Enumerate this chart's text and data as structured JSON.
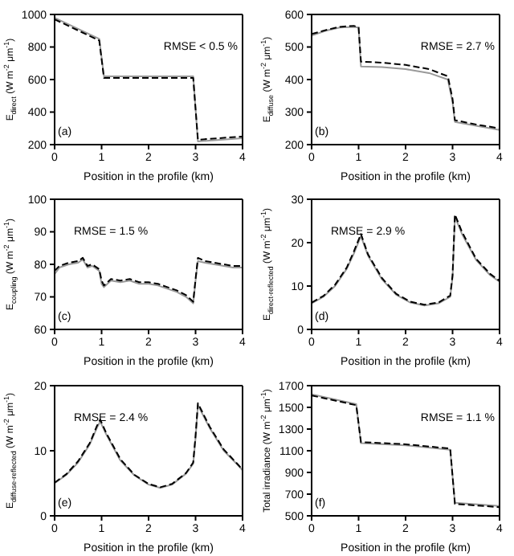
{
  "chart_data": [
    {
      "type": "line",
      "xlabel": "Position in the profile (km)",
      "ylabel": "E$_{direct}$ (W m$^{-2}$ μm$^{-1}$)",
      "annotations": [
        "RMSE < 0.5 %",
        "(a)"
      ],
      "xlim": [
        0,
        4
      ],
      "xticks": [
        0,
        1,
        2,
        3,
        4
      ],
      "ylim": [
        200,
        1000
      ],
      "yticks": [
        200,
        400,
        600,
        800,
        1000
      ],
      "series": [
        {
          "color": "#999999",
          "line_style": "solid",
          "x": [
            0,
            0.95,
            1.05,
            2.95,
            3.05,
            4
          ],
          "values": [
            980,
            850,
            620,
            620,
            220,
            240
          ]
        },
        {
          "color": "#000000",
          "line_style": "dashed",
          "x": [
            0,
            0.95,
            1.05,
            2.95,
            3.05,
            4
          ],
          "values": [
            970,
            840,
            610,
            610,
            230,
            250
          ]
        }
      ]
    },
    {
      "type": "line",
      "xlabel": "Position in the profile (km)",
      "ylabel": "E$_{diffuse}$ (W m$^{-2}$ μm$^{-1}$)",
      "annotations": [
        "RMSE = 2.7 %",
        "(b)"
      ],
      "xlim": [
        0,
        4
      ],
      "xticks": [
        0,
        1,
        2,
        3,
        4
      ],
      "ylim": [
        200,
        600
      ],
      "yticks": [
        200,
        300,
        400,
        500,
        600
      ],
      "series": [
        {
          "color": "#999999",
          "line_style": "solid",
          "x": [
            0,
            0.3,
            0.6,
            0.9,
            1.0,
            1.05,
            1.5,
            2,
            2.5,
            2.9,
            3.0,
            3.05,
            3.5,
            4
          ],
          "values": [
            535,
            550,
            560,
            562,
            560,
            440,
            438,
            432,
            420,
            400,
            330,
            270,
            258,
            245
          ]
        },
        {
          "color": "#000000",
          "line_style": "dashed",
          "x": [
            0,
            0.3,
            0.6,
            0.9,
            1.0,
            1.05,
            1.5,
            2,
            2.5,
            2.9,
            3.0,
            3.05,
            3.5,
            4
          ],
          "values": [
            540,
            552,
            562,
            565,
            560,
            455,
            452,
            445,
            432,
            410,
            340,
            275,
            262,
            250
          ]
        }
      ]
    },
    {
      "type": "line",
      "xlabel": "Position in the profile (km)",
      "ylabel": "E$_{coupling}$ (W m$^{-2}$ μm$^{-1}$)",
      "annotations": [
        "RMSE = 1.5 %",
        "(c)"
      ],
      "xlim": [
        0,
        4
      ],
      "xticks": [
        0,
        1,
        2,
        3,
        4
      ],
      "ylim": [
        60,
        100
      ],
      "yticks": [
        60,
        70,
        80,
        90,
        100
      ],
      "series": [
        {
          "color": "#999999",
          "line_style": "solid",
          "x": [
            0,
            0.1,
            0.3,
            0.5,
            0.6,
            0.7,
            0.8,
            0.95,
            1.0,
            1.05,
            1.2,
            1.4,
            1.6,
            1.8,
            2.0,
            2.2,
            2.4,
            2.6,
            2.8,
            2.95,
            3.0,
            3.05,
            3.2,
            3.4,
            3.6,
            3.8,
            4
          ],
          "values": [
            77,
            79,
            80,
            80.5,
            81.5,
            79,
            79.5,
            78,
            74,
            73,
            75,
            74.5,
            75,
            74,
            74,
            73.5,
            72.5,
            71.5,
            70,
            68,
            75,
            81,
            80.5,
            80,
            79.5,
            79,
            79
          ]
        },
        {
          "color": "#000000",
          "line_style": "dashed",
          "x": [
            0,
            0.1,
            0.3,
            0.5,
            0.6,
            0.7,
            0.8,
            0.95,
            1.0,
            1.05,
            1.2,
            1.4,
            1.6,
            1.8,
            2.0,
            2.2,
            2.4,
            2.6,
            2.8,
            2.95,
            3.0,
            3.05,
            3.2,
            3.4,
            3.6,
            3.8,
            4
          ],
          "values": [
            78,
            79.5,
            80.5,
            81,
            82,
            79.5,
            80,
            78.5,
            75,
            73.5,
            75.5,
            75,
            75.5,
            74.5,
            74.5,
            74,
            73,
            72,
            70.5,
            68.5,
            75.5,
            82,
            81,
            80.5,
            80,
            79.5,
            79.5
          ]
        }
      ]
    },
    {
      "type": "line",
      "xlabel": "Position in the profile (km)",
      "ylabel": "E$_{direct-reflected}$ (W m$^{-2}$ μm$^{-1}$)",
      "annotations": [
        "RMSE = 2.9 %",
        "(d)"
      ],
      "xlim": [
        0,
        4
      ],
      "xticks": [
        0,
        1,
        2,
        3,
        4
      ],
      "ylim": [
        0,
        30
      ],
      "yticks": [
        0,
        10,
        20,
        30
      ],
      "series": [
        {
          "color": "#999999",
          "line_style": "solid",
          "x": [
            0,
            0.25,
            0.5,
            0.75,
            0.9,
            1.05,
            1.2,
            1.5,
            1.8,
            2.1,
            2.4,
            2.7,
            2.95,
            3.0,
            3.05,
            3.2,
            3.5,
            3.8,
            4
          ],
          "values": [
            6,
            7.5,
            10,
            14,
            17.5,
            21.5,
            17,
            11.5,
            8,
            6.2,
            5.5,
            6,
            7.5,
            12,
            26,
            22,
            16,
            12.5,
            11
          ]
        },
        {
          "color": "#000000",
          "line_style": "dashed",
          "x": [
            0,
            0.25,
            0.5,
            0.75,
            0.9,
            1.05,
            1.2,
            1.5,
            1.8,
            2.1,
            2.4,
            2.7,
            2.95,
            3.0,
            3.05,
            3.2,
            3.5,
            3.8,
            4
          ],
          "values": [
            6.2,
            7.7,
            10.3,
            14.3,
            18,
            22,
            17.3,
            11.8,
            8.2,
            6.4,
            5.7,
            6.2,
            7.8,
            12.5,
            26.5,
            22.5,
            16.3,
            12.8,
            11.2
          ]
        }
      ]
    },
    {
      "type": "line",
      "xlabel": "Position in the profile (km)",
      "ylabel": "E$_{diffuse-reflected}$ (W m$^{-2}$ μm$^{-1}$)",
      "annotations": [
        "RMSE = 2.4 %",
        "(e)"
      ],
      "xlim": [
        0,
        4
      ],
      "xticks": [
        0,
        1,
        2,
        3,
        4
      ],
      "ylim": [
        0,
        20
      ],
      "yticks": [
        0,
        10,
        20
      ],
      "series": [
        {
          "color": "#999999",
          "line_style": "solid",
          "x": [
            0,
            0.25,
            0.5,
            0.75,
            0.9,
            0.97,
            1.1,
            1.4,
            1.7,
            2.0,
            2.25,
            2.5,
            2.8,
            2.95,
            3.0,
            3.05,
            3.3,
            3.6,
            3.9,
            4
          ],
          "values": [
            5,
            6.3,
            8.2,
            11,
            13.5,
            14.5,
            12.5,
            8.5,
            6.2,
            4.8,
            4.3,
            4.8,
            6.5,
            8,
            12,
            17,
            13.5,
            10,
            7.8,
            7
          ]
        },
        {
          "color": "#000000",
          "line_style": "dashed",
          "x": [
            0,
            0.25,
            0.5,
            0.75,
            0.9,
            0.97,
            1.1,
            1.4,
            1.7,
            2.0,
            2.25,
            2.5,
            2.8,
            2.95,
            3.0,
            3.05,
            3.3,
            3.6,
            3.9,
            4
          ],
          "values": [
            5.1,
            6.4,
            8.4,
            11.2,
            13.8,
            14.8,
            12.7,
            8.7,
            6.3,
            4.9,
            4.4,
            4.9,
            6.6,
            8.2,
            12.3,
            17.3,
            13.7,
            10.2,
            7.9,
            7.1
          ]
        }
      ]
    },
    {
      "type": "line",
      "xlabel": "Position in the profile (km)",
      "ylabel": "Total irradiance (W m$^{-2}$ μm$^{-1}$)",
      "annotations": [
        "RMSE = 1.1 %",
        "(f)"
      ],
      "xlim": [
        0,
        4
      ],
      "xticks": [
        0,
        1,
        2,
        3,
        4
      ],
      "ylim": [
        500,
        1700
      ],
      "yticks": [
        500,
        700,
        900,
        1100,
        1300,
        1500,
        1700
      ],
      "series": [
        {
          "color": "#999999",
          "line_style": "solid",
          "x": [
            0,
            0.95,
            1.05,
            2,
            2.95,
            3.05,
            4
          ],
          "values": [
            1620,
            1530,
            1170,
            1150,
            1110,
            620,
            590
          ]
        },
        {
          "color": "#000000",
          "line_style": "dashed",
          "x": [
            0,
            0.95,
            1.05,
            2,
            2.95,
            3.05,
            4
          ],
          "values": [
            1610,
            1520,
            1180,
            1160,
            1120,
            610,
            580
          ]
        }
      ]
    }
  ]
}
